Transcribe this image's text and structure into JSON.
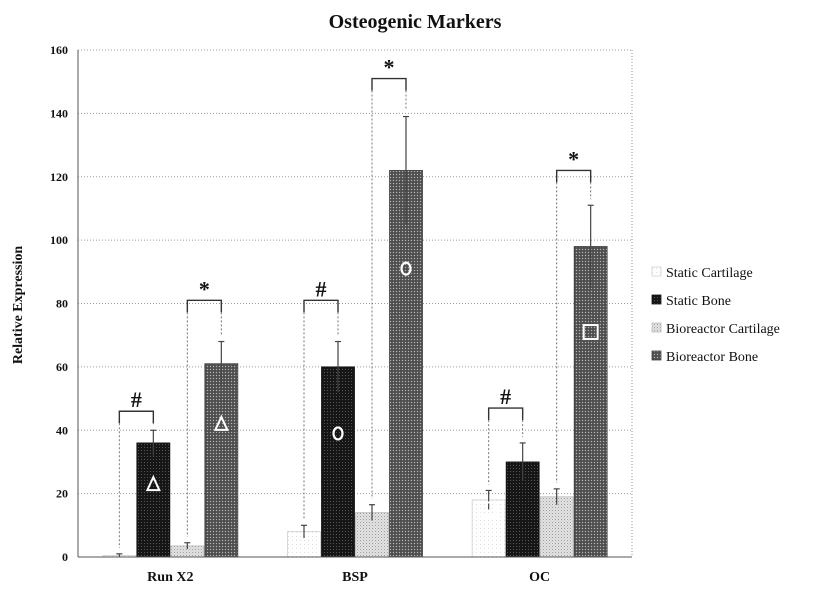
{
  "chart_data": {
    "type": "bar",
    "title": "Osteogenic Markers",
    "ylabel": "Relative Expression",
    "xlabel": "",
    "categories": [
      "Run X2",
      "BSP",
      "OC"
    ],
    "ylim": [
      0,
      160
    ],
    "yticks": [
      0,
      20,
      40,
      60,
      80,
      100,
      120,
      140,
      160
    ],
    "grid": true,
    "legend_position": "right",
    "series": [
      {
        "name": "Static Cartilage",
        "values": [
          0.5,
          8,
          18
        ],
        "errors": [
          0.5,
          2,
          3
        ],
        "pattern": "white"
      },
      {
        "name": "Static Bone",
        "values": [
          36,
          60,
          30
        ],
        "errors": [
          4,
          8,
          6
        ],
        "pattern": "black"
      },
      {
        "name": "Bioreactor Cartilage",
        "values": [
          3.5,
          14,
          19
        ],
        "errors": [
          1,
          2.5,
          2.5
        ],
        "pattern": "light"
      },
      {
        "name": "Bioreactor Bone",
        "values": [
          61,
          122,
          98
        ],
        "errors": [
          7,
          17,
          13
        ],
        "pattern": "dark"
      }
    ],
    "comparisons": [
      {
        "category": 0,
        "from": 0,
        "to": 1,
        "label": "#",
        "level": 46
      },
      {
        "category": 0,
        "from": 2,
        "to": 3,
        "label": "*",
        "level": 81
      },
      {
        "category": 1,
        "from": 0,
        "to": 1,
        "label": "#",
        "level": 81
      },
      {
        "category": 1,
        "from": 2,
        "to": 3,
        "label": "*",
        "level": 151
      },
      {
        "category": 2,
        "from": 0,
        "to": 1,
        "label": "#",
        "level": 47
      },
      {
        "category": 2,
        "from": 2,
        "to": 3,
        "label": "*",
        "level": 122
      }
    ],
    "markers": [
      {
        "category": 0,
        "series": 1,
        "shape": "triangle",
        "value": 23
      },
      {
        "category": 0,
        "series": 3,
        "shape": "triangle",
        "value": 42
      },
      {
        "category": 1,
        "series": 1,
        "shape": "circle",
        "value": 39
      },
      {
        "category": 1,
        "series": 3,
        "shape": "circle",
        "value": 91
      },
      {
        "category": 2,
        "series": 0,
        "shape": "square",
        "value": 15
      },
      {
        "category": 2,
        "series": 3,
        "shape": "square",
        "value": 71
      }
    ]
  }
}
